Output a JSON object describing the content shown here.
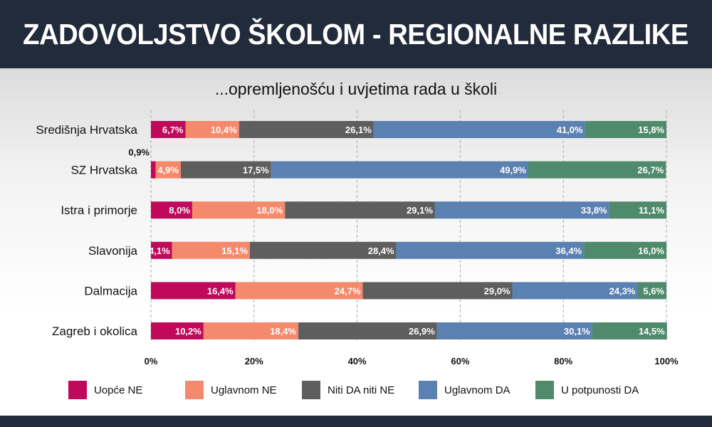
{
  "header": {
    "title": "ZADOVOLJSTVO ŠKOLOM - REGIONALNE RAZLIKE"
  },
  "chart_data": {
    "type": "bar",
    "orientation": "horizontal",
    "stacked": true,
    "normalized": true,
    "title": "...opremljenošću i uvjetima rada u školi",
    "categories": [
      "Središnja Hrvatska",
      "SZ Hrvatska",
      "Istra i primorje",
      "Slavonija",
      "Dalmacija",
      "Zagreb i okolica"
    ],
    "series": [
      {
        "name": "Uopće NE",
        "color": "#c0095a",
        "values": [
          6.7,
          0.9,
          8.0,
          4.1,
          16.4,
          10.2
        ],
        "labels": [
          "6,7%",
          "0,9%",
          "8,0%",
          "4,1%",
          "16,4%",
          "10,2%"
        ]
      },
      {
        "name": "Uglavnom NE",
        "color": "#f4896c",
        "values": [
          10.4,
          4.9,
          18.0,
          15.1,
          24.7,
          18.4
        ],
        "labels": [
          "10,4%",
          "4,9%",
          "18,0%",
          "15,1%",
          "24,7%",
          "18,4%"
        ]
      },
      {
        "name": "Niti DA niti NE",
        "color": "#5e5e5e",
        "values": [
          26.1,
          17.5,
          29.1,
          28.4,
          29.0,
          26.9
        ],
        "labels": [
          "26,1%",
          "17,5%",
          "29,1%",
          "28,4%",
          "29,0%",
          "26,9%"
        ]
      },
      {
        "name": "Uglavnom DA",
        "color": "#5b80b2",
        "values": [
          41.0,
          49.9,
          33.8,
          36.4,
          24.3,
          30.1
        ],
        "labels": [
          "41,0%",
          "49,9%",
          "33,8%",
          "36,4%",
          "24,3%",
          "30,1%"
        ]
      },
      {
        "name": "U potpunosti DA",
        "color": "#4e8a6b",
        "values": [
          15.8,
          26.7,
          11.1,
          16.0,
          5.6,
          14.5
        ],
        "labels": [
          "15,8%",
          "26,7%",
          "11,1%",
          "16,0%",
          "5,6%",
          "14,5%"
        ]
      }
    ],
    "xlim": [
      0,
      100
    ],
    "xticks": [
      "0%",
      "20%",
      "40%",
      "60%",
      "80%",
      "100%"
    ],
    "grid": true,
    "legend_position": "bottom"
  }
}
